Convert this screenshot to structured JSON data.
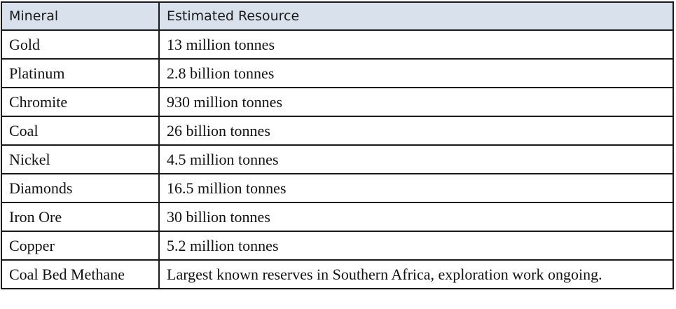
{
  "table": {
    "headers": [
      "Mineral",
      "Estimated Resource"
    ],
    "header_bg": "#d9e1ec",
    "rows": [
      [
        "Gold",
        "13 million tonnes"
      ],
      [
        "Platinum",
        "2.8 billion tonnes"
      ],
      [
        "Chromite",
        "930 million tonnes"
      ],
      [
        "Coal",
        "26 billion tonnes"
      ],
      [
        "Nickel",
        "4.5 million tonnes"
      ],
      [
        "Diamonds",
        "16.5 million tonnes"
      ],
      [
        "Iron Ore",
        "30 billion tonnes"
      ],
      [
        "Copper",
        "5.2 million tonnes"
      ],
      [
        "Coal Bed Methane",
        "Largest known reserves in Southern Africa, exploration work ongoing."
      ]
    ]
  }
}
